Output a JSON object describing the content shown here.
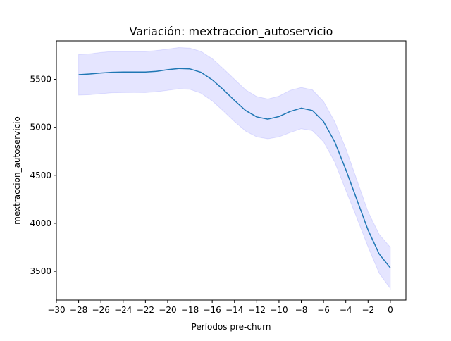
{
  "chart_data": {
    "type": "line",
    "title": "Variación: mextraccion_autoservicio",
    "xlabel": "Períodos pre-churn",
    "ylabel": "mextraccion_autoservicio",
    "xlim": [
      -30,
      1.4
    ],
    "ylim": [
      3200,
      5900
    ],
    "xticks": [
      -30,
      -28,
      -26,
      -24,
      -22,
      -20,
      -18,
      -16,
      -14,
      -12,
      -10,
      -8,
      -6,
      -4,
      -2,
      0
    ],
    "xtick_labels": [
      "−30",
      "−28",
      "−26",
      "−24",
      "−22",
      "−20",
      "−18",
      "−16",
      "−14",
      "−12",
      "−10",
      "−8",
      "−6",
      "−4",
      "−2",
      "0"
    ],
    "yticks": [
      3500,
      4000,
      4500,
      5000,
      5500
    ],
    "ytick_labels": [
      "3500",
      "4000",
      "4500",
      "5000",
      "5500"
    ],
    "grid": false,
    "colors": {
      "line": "#1f77b4",
      "band": "#0000ff"
    },
    "series": [
      {
        "x": [
          -28,
          -27,
          -26,
          -25,
          -24,
          -23,
          -22,
          -21,
          -20,
          -19,
          -18,
          -17,
          -16,
          -15,
          -14,
          -13,
          -12,
          -11,
          -10,
          -9,
          -8,
          -7,
          -6,
          -5,
          -4,
          -3,
          -2,
          -1,
          0
        ],
        "values": [
          5548,
          5555,
          5565,
          5573,
          5575,
          5575,
          5575,
          5583,
          5600,
          5612,
          5608,
          5572,
          5495,
          5392,
          5280,
          5175,
          5108,
          5085,
          5112,
          5165,
          5200,
          5175,
          5060,
          4850,
          4560,
          4245,
          3930,
          3680,
          3535
        ],
        "ci_lower": [
          5335,
          5340,
          5350,
          5360,
          5362,
          5363,
          5362,
          5370,
          5385,
          5400,
          5395,
          5355,
          5275,
          5170,
          5060,
          4960,
          4900,
          4880,
          4900,
          4945,
          4985,
          4965,
          4850,
          4640,
          4345,
          4055,
          3755,
          3480,
          3320
        ],
        "ci_upper": [
          5760,
          5765,
          5780,
          5790,
          5790,
          5790,
          5790,
          5800,
          5815,
          5830,
          5825,
          5790,
          5715,
          5610,
          5500,
          5390,
          5320,
          5295,
          5325,
          5385,
          5415,
          5390,
          5270,
          5060,
          4780,
          4450,
          4120,
          3885,
          3750
        ]
      }
    ]
  }
}
